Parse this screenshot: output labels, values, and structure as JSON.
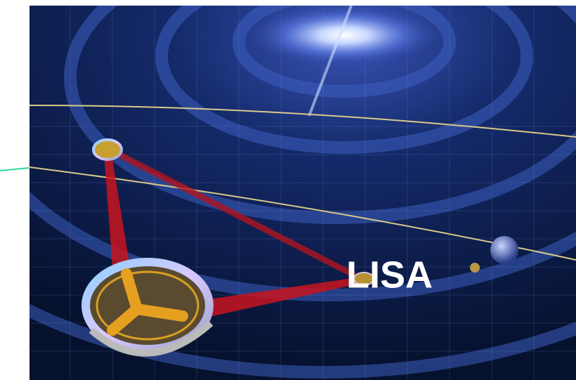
{
  "label": "LISA"
}
